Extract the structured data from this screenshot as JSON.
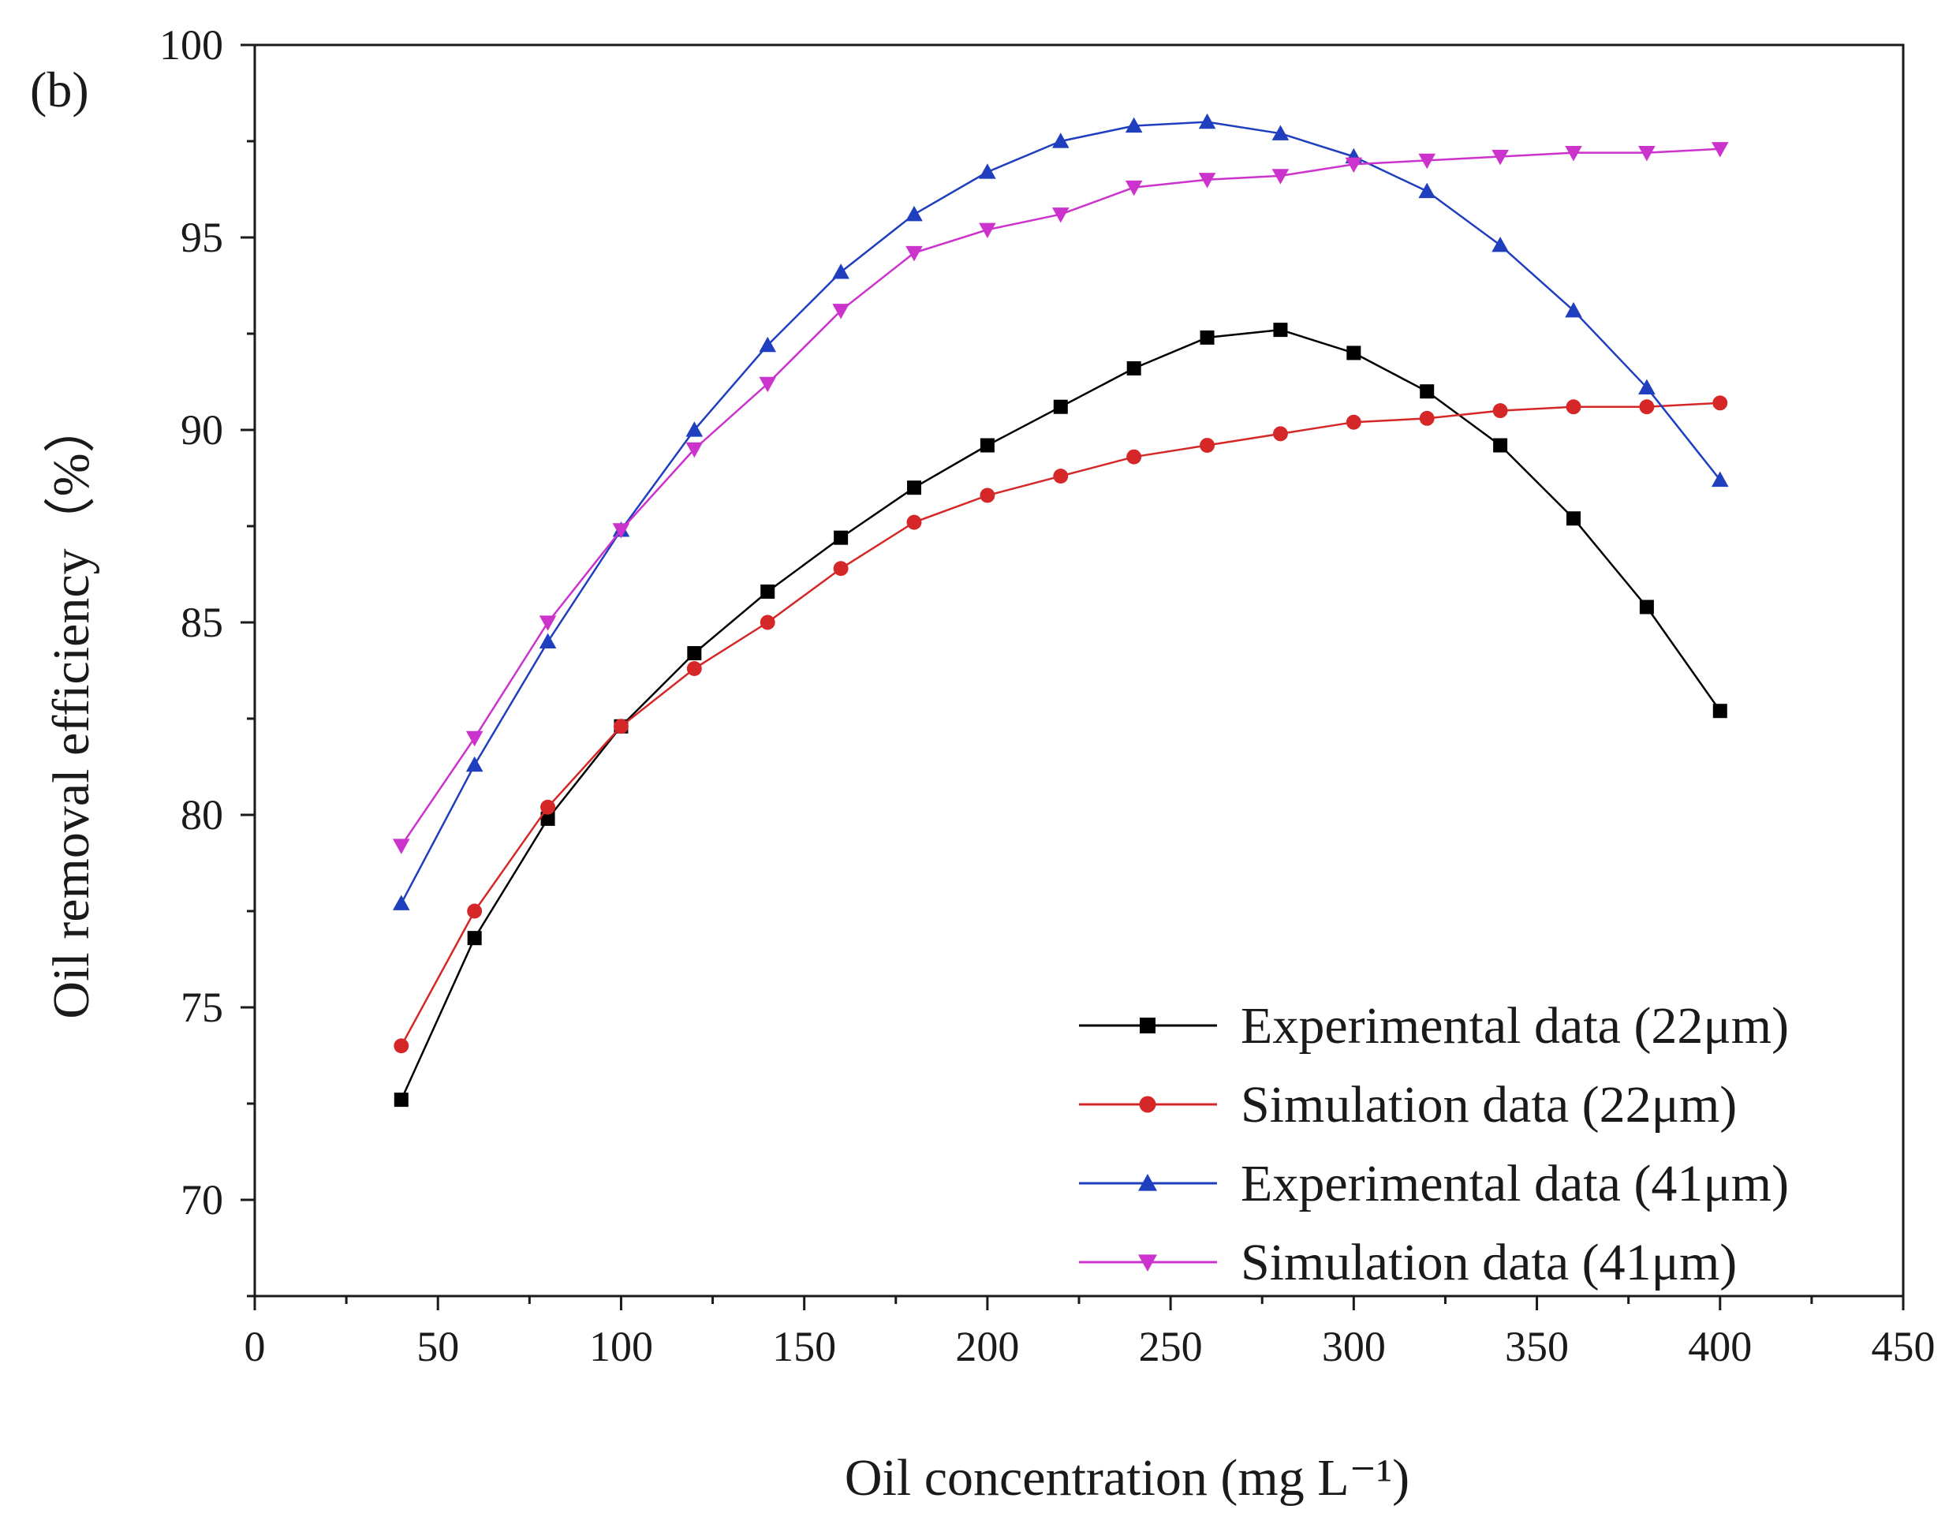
{
  "chart_data": {
    "type": "line",
    "panel_label": "(b)",
    "xlabel": "Oil concentration (mg L⁻¹)",
    "ylabel": "Oil removal efficiency（%）",
    "xlim": [
      0,
      450
    ],
    "ylim": [
      67.5,
      100
    ],
    "xticks": [
      0,
      50,
      100,
      150,
      200,
      250,
      300,
      350,
      400,
      450
    ],
    "yticks": [
      70,
      75,
      80,
      85,
      90,
      95,
      100
    ],
    "grid": false,
    "legend_position": "bottom-right",
    "series": [
      {
        "name": "Experimental data (22μm)",
        "color": "#000000",
        "marker": "square",
        "line": true,
        "x": [
          40,
          60,
          80,
          100,
          120,
          140,
          160,
          180,
          200,
          220,
          240,
          260,
          280,
          300,
          320,
          340,
          360,
          380,
          400
        ],
        "y": [
          72.6,
          76.8,
          79.9,
          82.3,
          84.2,
          85.8,
          87.2,
          88.5,
          89.6,
          90.6,
          91.6,
          92.4,
          92.6,
          92.0,
          91.0,
          89.6,
          87.7,
          85.4,
          82.7
        ]
      },
      {
        "name": "Simulation data (22μm)",
        "color": "#d62728",
        "marker": "circle",
        "line": true,
        "x": [
          40,
          60,
          80,
          100,
          120,
          140,
          160,
          180,
          200,
          220,
          240,
          260,
          280,
          300,
          320,
          340,
          360,
          380,
          400
        ],
        "y": [
          74.0,
          77.5,
          80.2,
          82.3,
          83.8,
          85.0,
          86.4,
          87.6,
          88.3,
          88.8,
          89.3,
          89.6,
          89.9,
          90.2,
          90.3,
          90.5,
          90.6,
          90.6,
          90.7
        ]
      },
      {
        "name": "Experimental data (41μm)",
        "color": "#1f3fbf",
        "marker": "triangle-up",
        "line": true,
        "x": [
          40,
          60,
          80,
          100,
          120,
          140,
          160,
          180,
          200,
          220,
          240,
          260,
          280,
          300,
          320,
          340,
          360,
          380,
          400
        ],
        "y": [
          77.7,
          81.3,
          84.5,
          87.4,
          90.0,
          92.2,
          94.1,
          95.6,
          96.7,
          97.5,
          97.9,
          98.0,
          97.7,
          97.1,
          96.2,
          94.8,
          93.1,
          91.1,
          88.7
        ]
      },
      {
        "name": "Simulation data (41μm)",
        "color": "#cc33cc",
        "marker": "triangle-down",
        "line": true,
        "x": [
          40,
          60,
          80,
          100,
          120,
          140,
          160,
          180,
          200,
          220,
          240,
          260,
          280,
          300,
          320,
          340,
          360,
          380,
          400
        ],
        "y": [
          79.2,
          82.0,
          85.0,
          87.4,
          89.5,
          91.2,
          93.1,
          94.6,
          95.2,
          95.6,
          96.3,
          96.5,
          96.6,
          96.9,
          97.0,
          97.1,
          97.2,
          97.2,
          97.3
        ]
      }
    ]
  }
}
